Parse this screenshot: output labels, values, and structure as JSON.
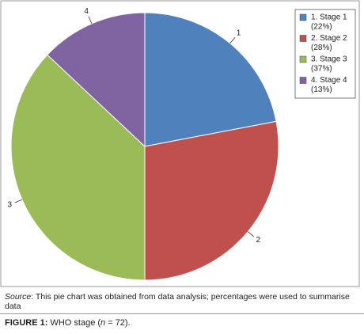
{
  "chart_data": {
    "type": "pie",
    "categories": [
      "1. Stage 1",
      "2. Stage 2",
      "3. Stage 3",
      "4. Stage 4"
    ],
    "values": [
      22,
      28,
      37,
      13
    ],
    "value_labels": [
      "(22%)",
      "(28%)",
      "(37%)",
      "(13%)"
    ],
    "labels": [
      "1",
      "2",
      "3",
      "4"
    ],
    "colors": [
      "#4f81bd",
      "#c0504d",
      "#9bbb59",
      "#8064a2"
    ],
    "legend": "top-right",
    "source_label": "Source",
    "source_text": ": This pie chart was obtained from data analysis; percentages were used to summarise data",
    "figure_label": "FIGURE 1:",
    "caption_start": " WHO stage (",
    "caption_n": "n",
    "caption_end": " = 72)."
  }
}
